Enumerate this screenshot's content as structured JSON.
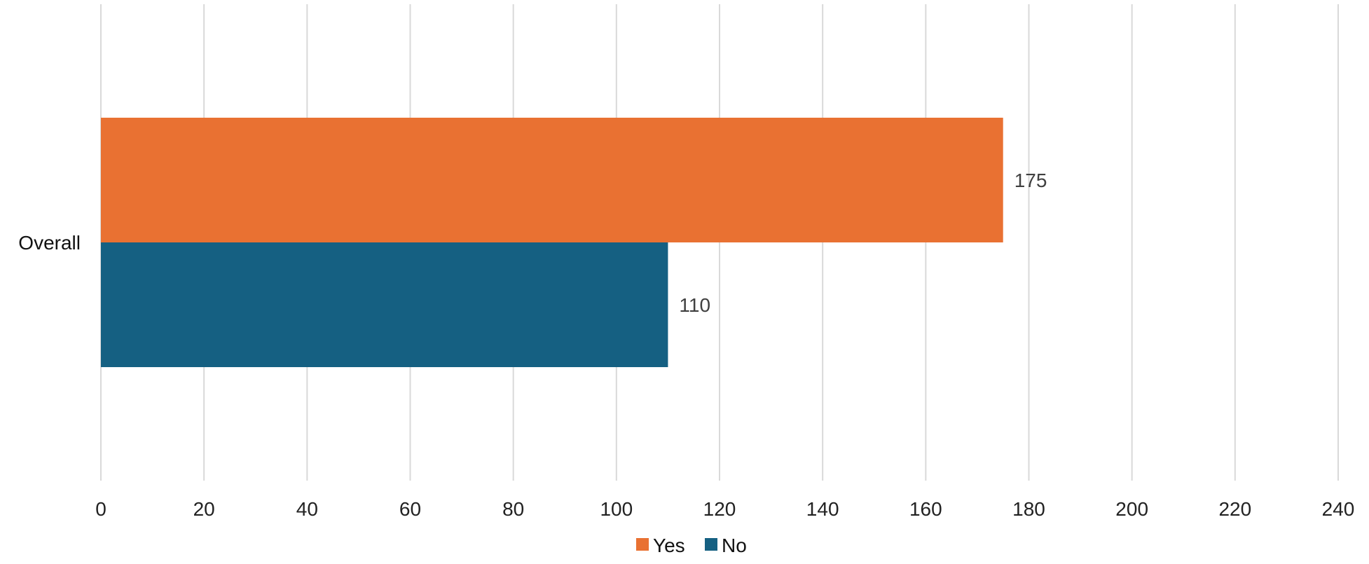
{
  "chart_data": {
    "type": "bar",
    "orientation": "horizontal",
    "categories": [
      "Overall"
    ],
    "series": [
      {
        "name": "Yes",
        "values": [
          175
        ],
        "color": "#E97132"
      },
      {
        "name": "No",
        "values": [
          110
        ],
        "color": "#156082"
      }
    ],
    "xlim": [
      0,
      240
    ],
    "x_ticks": [
      "0",
      "20",
      "40",
      "60",
      "80",
      "100",
      "120",
      "140",
      "160",
      "180",
      "200",
      "220",
      "240"
    ],
    "data_labels": [
      "175",
      "110"
    ],
    "grid": "vertical",
    "legend_position": "bottom-center"
  }
}
